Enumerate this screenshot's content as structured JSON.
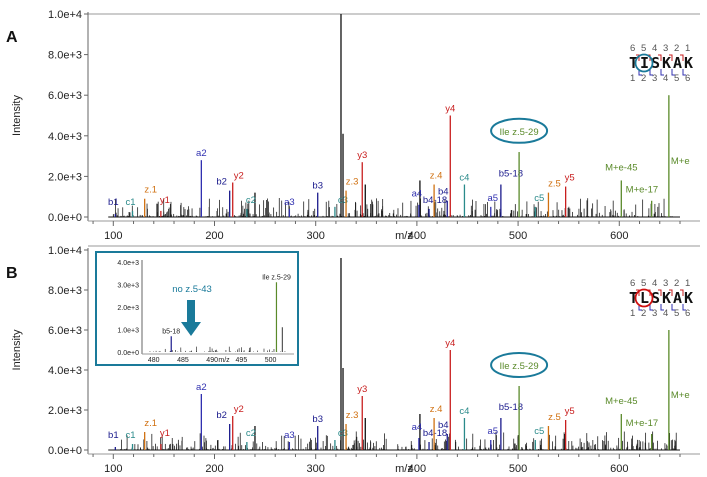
{
  "colors": {
    "a_ion": "#3030b0",
    "b_ion": "#1a1a8c",
    "c_ion": "#2a8a8a",
    "y_ion": "#c81e1e",
    "z_ion": "#d07010",
    "neutral": "#5a8a2a",
    "highlight": "#1a7a9a",
    "circle_red": "#d01010",
    "baseline": "#000000"
  },
  "icons": {
    "arrow": "down-arrow-icon"
  },
  "chart_data": [
    {
      "type": "bar",
      "panel_label": "A",
      "xlabel": "m/z",
      "ylabel": "Intensity",
      "xlim": [
        75,
        660
      ],
      "ylim": [
        0,
        10000
      ],
      "xticks": [
        100,
        200,
        300,
        400,
        500,
        600
      ],
      "yticks": [
        0,
        2000,
        4000,
        6000,
        8000,
        10000
      ],
      "ytick_labels": [
        "0.0e+0",
        "2.0e+3",
        "4.0e+3",
        "6.0e+3",
        "8.0e+3",
        "1.0e+4"
      ],
      "sequence": "TISKAK",
      "sequence_top_numbers": [
        "6",
        "5",
        "4",
        "3",
        "2",
        "1"
      ],
      "sequence_bottom_numbers": [
        "1",
        "2",
        "3",
        "4",
        "5",
        "6"
      ],
      "sequence_circle_index": 1,
      "sequence_circle_color": "#1a7a9a",
      "peaks": [
        {
          "label": "b1",
          "x": 102,
          "y": 150,
          "ion": "b_ion"
        },
        {
          "label": "c1",
          "x": 119,
          "y": 300,
          "ion": "c_ion"
        },
        {
          "label": "y1",
          "x": 147,
          "y": 300,
          "ion": "y_ion"
        },
        {
          "label": "z.1",
          "x": 131,
          "y": 900,
          "ion": "z_ion"
        },
        {
          "label": "a2",
          "x": 187,
          "y": 2800,
          "ion": "a_ion"
        },
        {
          "label": "b2",
          "x": 215,
          "y": 1300,
          "ion": "b_ion"
        },
        {
          "label": "y2",
          "x": 218,
          "y": 1700,
          "ion": "y_ion"
        },
        {
          "label": "c2",
          "x": 232,
          "y": 400,
          "ion": "c_ion"
        },
        {
          "label": "a3",
          "x": 274,
          "y": 400,
          "ion": "a_ion"
        },
        {
          "label": "b3",
          "x": 302,
          "y": 1200,
          "ion": "b_ion"
        },
        {
          "label": "c3",
          "x": 319,
          "y": 500,
          "ion": "c_ion"
        },
        {
          "label": "z.3",
          "x": 330,
          "y": 1300,
          "ion": "z_ion"
        },
        {
          "label": "y3",
          "x": 346,
          "y": 2700,
          "ion": "y_ion"
        },
        {
          "label": "a4",
          "x": 402,
          "y": 600,
          "ion": "a_ion"
        },
        {
          "label": "b4-18",
          "x": 412,
          "y": 400,
          "ion": "b_ion"
        },
        {
          "label": "b4",
          "x": 430,
          "y": 800,
          "ion": "b_ion"
        },
        {
          "label": "z.4",
          "x": 417,
          "y": 1600,
          "ion": "z_ion"
        },
        {
          "label": "y4",
          "x": 433,
          "y": 5000,
          "ion": "y_ion"
        },
        {
          "label": "c4",
          "x": 447,
          "y": 1600,
          "ion": "c_ion"
        },
        {
          "label": "a5",
          "x": 473,
          "y": 500,
          "ion": "a_ion"
        },
        {
          "label": "b5-18",
          "x": 483,
          "y": 1600,
          "ion": "b_ion"
        },
        {
          "label": "Ile z.5-29",
          "x": 501,
          "y": 3200,
          "ion": "neutral"
        },
        {
          "label": "c5",
          "x": 517,
          "y": 500,
          "ion": "c_ion"
        },
        {
          "label": "z.5",
          "x": 530,
          "y": 1200,
          "ion": "z_ion"
        },
        {
          "label": "y5",
          "x": 547,
          "y": 1500,
          "ion": "y_ion"
        },
        {
          "label": "M+e-45",
          "x": 602,
          "y": 1800,
          "ion": "neutral"
        },
        {
          "label": "M+e-17",
          "x": 632,
          "y": 800,
          "ion": "neutral"
        },
        {
          "label": "M+e",
          "x": 649,
          "y": 6000,
          "ion": "neutral"
        }
      ],
      "unlabeled_major_peaks": [
        {
          "x": 325,
          "y": 10000
        },
        {
          "x": 327,
          "y": 4100
        },
        {
          "x": 349,
          "y": 1600
        },
        {
          "x": 240,
          "y": 1200
        },
        {
          "x": 403,
          "y": 1800
        }
      ]
    },
    {
      "type": "bar",
      "panel_label": "B",
      "xlabel": "m/z",
      "ylabel": "Intensity",
      "xlim": [
        75,
        660
      ],
      "ylim": [
        0,
        10000
      ],
      "xticks": [
        100,
        200,
        300,
        400,
        500,
        600
      ],
      "yticks": [
        0,
        2000,
        4000,
        6000,
        8000,
        10000
      ],
      "ytick_labels": [
        "0.0e+0",
        "2.0e+3",
        "4.0e+3",
        "6.0e+3",
        "8.0e+3",
        "1.0e+4"
      ],
      "sequence": "TLSKAK",
      "sequence_top_numbers": [
        "6",
        "5",
        "4",
        "3",
        "2",
        "1"
      ],
      "sequence_bottom_numbers": [
        "1",
        "2",
        "3",
        "4",
        "5",
        "6"
      ],
      "sequence_circle_index": 1,
      "sequence_circle_color": "#d01010",
      "peaks": [
        {
          "label": "b1",
          "x": 102,
          "y": 150,
          "ion": "b_ion"
        },
        {
          "label": "c1",
          "x": 119,
          "y": 300,
          "ion": "c_ion"
        },
        {
          "label": "y1",
          "x": 147,
          "y": 300,
          "ion": "y_ion"
        },
        {
          "label": "z.1",
          "x": 131,
          "y": 900,
          "ion": "z_ion"
        },
        {
          "label": "a2",
          "x": 187,
          "y": 2800,
          "ion": "a_ion"
        },
        {
          "label": "b2",
          "x": 215,
          "y": 1300,
          "ion": "b_ion"
        },
        {
          "label": "y2",
          "x": 218,
          "y": 1700,
          "ion": "y_ion"
        },
        {
          "label": "c2",
          "x": 232,
          "y": 400,
          "ion": "c_ion"
        },
        {
          "label": "a3",
          "x": 274,
          "y": 400,
          "ion": "a_ion"
        },
        {
          "label": "b3",
          "x": 302,
          "y": 1200,
          "ion": "b_ion"
        },
        {
          "label": "c3",
          "x": 319,
          "y": 500,
          "ion": "c_ion"
        },
        {
          "label": "z.3",
          "x": 330,
          "y": 1300,
          "ion": "z_ion"
        },
        {
          "label": "y3",
          "x": 346,
          "y": 2700,
          "ion": "y_ion"
        },
        {
          "label": "a4",
          "x": 402,
          "y": 600,
          "ion": "a_ion"
        },
        {
          "label": "b4-18",
          "x": 412,
          "y": 400,
          "ion": "b_ion"
        },
        {
          "label": "b4",
          "x": 430,
          "y": 800,
          "ion": "b_ion"
        },
        {
          "label": "z.4",
          "x": 417,
          "y": 1600,
          "ion": "z_ion"
        },
        {
          "label": "y4",
          "x": 433,
          "y": 5000,
          "ion": "y_ion"
        },
        {
          "label": "c4",
          "x": 447,
          "y": 1600,
          "ion": "c_ion"
        },
        {
          "label": "a5",
          "x": 473,
          "y": 500,
          "ion": "a_ion"
        },
        {
          "label": "b5-18",
          "x": 483,
          "y": 1600,
          "ion": "b_ion"
        },
        {
          "label": "Ile z.5-29",
          "x": 501,
          "y": 3200,
          "ion": "neutral"
        },
        {
          "label": "c5",
          "x": 517,
          "y": 500,
          "ion": "c_ion"
        },
        {
          "label": "z.5",
          "x": 530,
          "y": 1200,
          "ion": "z_ion"
        },
        {
          "label": "y5",
          "x": 547,
          "y": 1500,
          "ion": "y_ion"
        },
        {
          "label": "M+e-45",
          "x": 602,
          "y": 1800,
          "ion": "neutral"
        },
        {
          "label": "M+e-17",
          "x": 632,
          "y": 800,
          "ion": "neutral"
        },
        {
          "label": "M+e",
          "x": 649,
          "y": 6000,
          "ion": "neutral"
        }
      ],
      "unlabeled_major_peaks": [
        {
          "x": 325,
          "y": 9600
        },
        {
          "x": 327,
          "y": 4100
        },
        {
          "x": 349,
          "y": 1600
        },
        {
          "x": 240,
          "y": 1200
        },
        {
          "x": 403,
          "y": 1800
        }
      ],
      "inset": {
        "xlabel": "m/z",
        "xlim": [
          478,
          504
        ],
        "ylim": [
          0,
          4000
        ],
        "xticks": [
          480,
          485,
          490,
          495,
          500
        ],
        "yticks": [
          0,
          1000,
          2000,
          3000,
          4000
        ],
        "ytick_labels": [
          "0.0e+0",
          "1.0e+3",
          "2.0e+3",
          "3.0e+3",
          "4.0e+3"
        ],
        "annotation": "no z.5-43",
        "peaks": [
          {
            "label": "b5-18",
            "x": 483,
            "y": 700,
            "ion": "b_ion"
          },
          {
            "label": "Ile z.5-29",
            "x": 501,
            "y": 3100,
            "ion": "neutral"
          }
        ],
        "unlabeled_peaks": [
          {
            "x": 502,
            "y": 1100
          }
        ]
      }
    }
  ]
}
